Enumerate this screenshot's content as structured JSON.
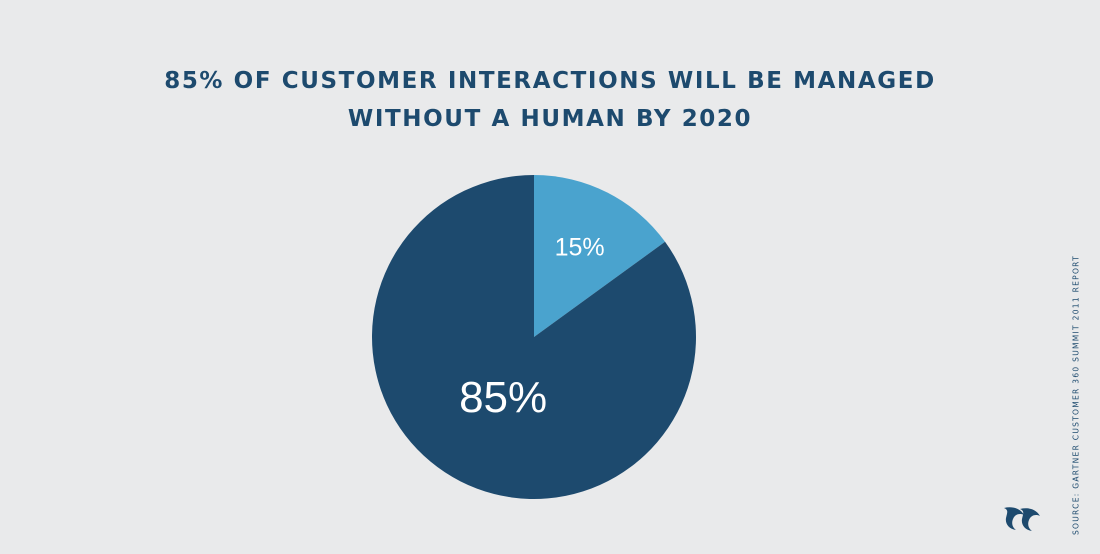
{
  "header": {
    "title_line1": "85% OF CUSTOMER INTERACTIONS WILL BE MANAGED",
    "title_line2": "WITHOUT A HUMAN BY 2020"
  },
  "chart_data": {
    "type": "pie",
    "title": "85% OF CUSTOMER INTERACTIONS WILL BE MANAGED WITHOUT A HUMAN BY 2020",
    "slices": [
      {
        "label": "15%",
        "value": 15,
        "color": "#4aa3ce"
      },
      {
        "label": "85%",
        "value": 85,
        "color": "#1d4a6e"
      }
    ]
  },
  "footer": {
    "source": "SOURCE: GARTNER CUSTOMER 360 SUMMIT 2011 REPORT"
  },
  "logo": {
    "icon": "brand-logo-icon",
    "color": "#1d4a6e"
  }
}
